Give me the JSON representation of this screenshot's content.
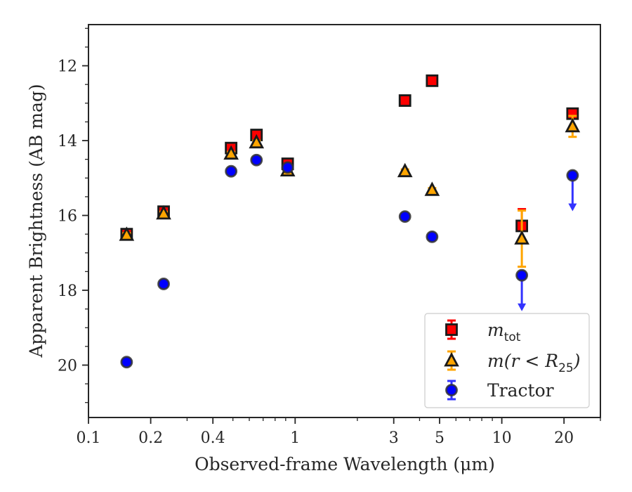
{
  "chart_data": {
    "type": "scatter",
    "title": "",
    "xlabel": "Observed-frame Wavelength (μm)",
    "ylabel": "Apparent Brightness (AB mag)",
    "xscale": "log",
    "yinverted": true,
    "xlim": [
      0.1,
      30
    ],
    "ylim": [
      21.4,
      10.9
    ],
    "xticks": [
      {
        "value": 0.1,
        "label": "0.1"
      },
      {
        "value": 0.2,
        "label": "0.2"
      },
      {
        "value": 0.4,
        "label": "0.4"
      },
      {
        "value": 1,
        "label": "1"
      },
      {
        "value": 3,
        "label": "3"
      },
      {
        "value": 5,
        "label": "5"
      },
      {
        "value": 10,
        "label": "10"
      },
      {
        "value": 20,
        "label": "20"
      }
    ],
    "yticks": [
      {
        "value": 12,
        "label": "12"
      },
      {
        "value": 14,
        "label": "14"
      },
      {
        "value": 16,
        "label": "16"
      },
      {
        "value": 18,
        "label": "18"
      },
      {
        "value": 20,
        "label": "20"
      }
    ],
    "grid": false,
    "legend_position": "lower-right",
    "series": [
      {
        "name_main": "m",
        "name_sub": "tot",
        "marker": "square",
        "color": "#ff0000",
        "errcolor": "#ff0000",
        "points": [
          {
            "x": 0.153,
            "y": 16.5,
            "err": 0.05
          },
          {
            "x": 0.231,
            "y": 15.9,
            "err": 0.05
          },
          {
            "x": 0.49,
            "y": 14.2,
            "err": 0.05
          },
          {
            "x": 0.65,
            "y": 13.85,
            "err": 0.05
          },
          {
            "x": 0.92,
            "y": 14.62,
            "err": 0.05
          },
          {
            "x": 3.4,
            "y": 12.93,
            "err": 0.05
          },
          {
            "x": 4.6,
            "y": 12.4,
            "err": 0.05
          },
          {
            "x": 12.5,
            "y": 16.28,
            "err": 0.45
          },
          {
            "x": 22.0,
            "y": 13.28,
            "err": 0.05
          }
        ]
      },
      {
        "name_main": "m(r < R",
        "name_sub": "25",
        "name_close": ")",
        "marker": "triangle",
        "color": "#ffa500",
        "errcolor": "#ffa500",
        "points": [
          {
            "x": 0.153,
            "y": 16.52,
            "err": 0.05
          },
          {
            "x": 0.231,
            "y": 15.95,
            "err": 0.05
          },
          {
            "x": 0.49,
            "y": 14.35,
            "err": 0.05
          },
          {
            "x": 0.65,
            "y": 14.05,
            "err": 0.05
          },
          {
            "x": 0.92,
            "y": 14.8,
            "err": 0.05
          },
          {
            "x": 3.4,
            "y": 14.82,
            "err": 0.05
          },
          {
            "x": 4.6,
            "y": 15.32,
            "err": 0.05
          },
          {
            "x": 12.5,
            "y": 16.62,
            "err": 0.75
          },
          {
            "x": 22.0,
            "y": 13.62,
            "err": 0.28
          }
        ]
      },
      {
        "name": "Tractor",
        "marker": "circle",
        "color": "#0000ff",
        "errcolor": "#3333ff",
        "points": [
          {
            "x": 0.153,
            "y": 19.92,
            "err": 0.05
          },
          {
            "x": 0.231,
            "y": 17.83,
            "err": 0.05
          },
          {
            "x": 0.49,
            "y": 14.82,
            "err": 0.05
          },
          {
            "x": 0.65,
            "y": 14.52,
            "err": 0.05
          },
          {
            "x": 0.92,
            "y": 14.72,
            "err": 0.05
          },
          {
            "x": 3.4,
            "y": 16.03,
            "err": 0.05
          },
          {
            "x": 4.6,
            "y": 16.57,
            "err": 0.05
          },
          {
            "x": 12.5,
            "y": 17.6,
            "err": 0.05,
            "upper_limit": true
          },
          {
            "x": 22.0,
            "y": 14.93,
            "err": 0.05,
            "upper_limit": true
          }
        ]
      }
    ]
  }
}
